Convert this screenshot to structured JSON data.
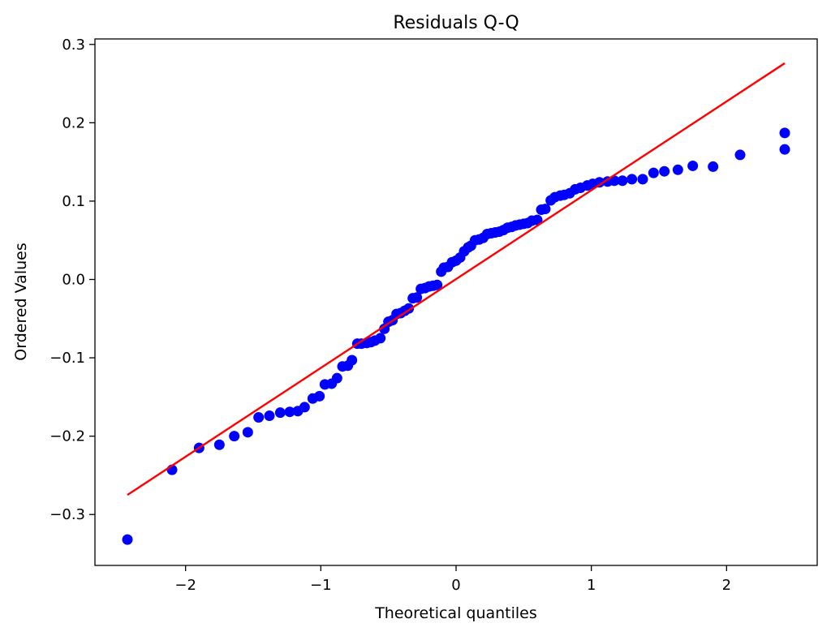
{
  "chart_data": {
    "type": "scatter",
    "title": "Residuals Q-Q",
    "xlabel": "Theoretical quantiles",
    "ylabel": "Ordered Values",
    "xlim": [
      -2.67,
      2.67
    ],
    "ylim": [
      -0.365,
      0.307
    ],
    "xticks": [
      -2,
      -1,
      0,
      1,
      2
    ],
    "xtick_labels": [
      "−2",
      "−1",
      "0",
      "1",
      "2"
    ],
    "yticks": [
      -0.3,
      -0.2,
      -0.1,
      0.0,
      0.1,
      0.2,
      0.3
    ],
    "ytick_labels": [
      "−0.3",
      "−0.2",
      "−0.1",
      "0.0",
      "0.1",
      "0.2",
      "0.3"
    ],
    "grid": false,
    "series": [
      {
        "marker_color": "#0000ff",
        "points": [
          [
            -2.43,
            -0.332
          ],
          [
            -2.1,
            -0.243
          ],
          [
            -1.9,
            -0.215
          ],
          [
            -1.75,
            -0.211
          ],
          [
            -1.64,
            -0.2
          ],
          [
            -1.54,
            -0.195
          ],
          [
            -1.46,
            -0.176
          ],
          [
            -1.38,
            -0.174
          ],
          [
            -1.3,
            -0.17
          ],
          [
            -1.23,
            -0.169
          ],
          [
            -1.17,
            -0.168
          ],
          [
            -1.12,
            -0.163
          ],
          [
            -1.06,
            -0.152
          ],
          [
            -1.01,
            -0.149
          ],
          [
            -0.97,
            -0.134
          ],
          [
            -0.92,
            -0.133
          ],
          [
            -0.88,
            -0.126
          ],
          [
            -0.84,
            -0.111
          ],
          [
            -0.8,
            -0.11
          ],
          [
            -0.77,
            -0.103
          ],
          [
            -0.73,
            -0.082
          ],
          [
            -0.7,
            -0.082
          ],
          [
            -0.66,
            -0.081
          ],
          [
            -0.63,
            -0.08
          ],
          [
            -0.6,
            -0.078
          ],
          [
            -0.56,
            -0.075
          ],
          [
            -0.53,
            -0.063
          ],
          [
            -0.5,
            -0.054
          ],
          [
            -0.47,
            -0.052
          ],
          [
            -0.44,
            -0.044
          ],
          [
            -0.41,
            -0.043
          ],
          [
            -0.38,
            -0.04
          ],
          [
            -0.35,
            -0.037
          ],
          [
            -0.32,
            -0.024
          ],
          [
            -0.29,
            -0.023
          ],
          [
            -0.26,
            -0.012
          ],
          [
            -0.23,
            -0.011
          ],
          [
            -0.2,
            -0.009
          ],
          [
            -0.17,
            -0.008
          ],
          [
            -0.14,
            -0.007
          ],
          [
            -0.11,
            0.01
          ],
          [
            -0.09,
            0.015
          ],
          [
            -0.06,
            0.016
          ],
          [
            -0.03,
            0.022
          ],
          [
            0.0,
            0.024
          ],
          [
            0.03,
            0.028
          ],
          [
            0.06,
            0.036
          ],
          [
            0.09,
            0.041
          ],
          [
            0.11,
            0.043
          ],
          [
            0.14,
            0.05
          ],
          [
            0.17,
            0.051
          ],
          [
            0.2,
            0.053
          ],
          [
            0.23,
            0.058
          ],
          [
            0.26,
            0.059
          ],
          [
            0.29,
            0.06
          ],
          [
            0.32,
            0.061
          ],
          [
            0.35,
            0.063
          ],
          [
            0.38,
            0.066
          ],
          [
            0.41,
            0.067
          ],
          [
            0.44,
            0.069
          ],
          [
            0.47,
            0.07
          ],
          [
            0.5,
            0.071
          ],
          [
            0.53,
            0.072
          ],
          [
            0.56,
            0.075
          ],
          [
            0.6,
            0.076
          ],
          [
            0.63,
            0.089
          ],
          [
            0.66,
            0.09
          ],
          [
            0.7,
            0.101
          ],
          [
            0.73,
            0.105
          ],
          [
            0.77,
            0.107
          ],
          [
            0.8,
            0.108
          ],
          [
            0.84,
            0.11
          ],
          [
            0.88,
            0.115
          ],
          [
            0.92,
            0.117
          ],
          [
            0.97,
            0.12
          ],
          [
            1.01,
            0.122
          ],
          [
            1.06,
            0.124
          ],
          [
            1.12,
            0.125
          ],
          [
            1.17,
            0.126
          ],
          [
            1.23,
            0.126
          ],
          [
            1.3,
            0.128
          ],
          [
            1.38,
            0.128
          ],
          [
            1.46,
            0.136
          ],
          [
            1.54,
            0.138
          ],
          [
            1.64,
            0.14
          ],
          [
            1.75,
            0.145
          ],
          [
            1.9,
            0.144
          ],
          [
            2.1,
            0.159
          ],
          [
            2.43,
            0.166
          ],
          [
            2.43,
            0.187
          ]
        ]
      }
    ],
    "fit_line": {
      "color": "#ff0000",
      "x": [
        -2.43,
        2.43
      ],
      "y": [
        -0.275,
        0.276
      ]
    }
  }
}
